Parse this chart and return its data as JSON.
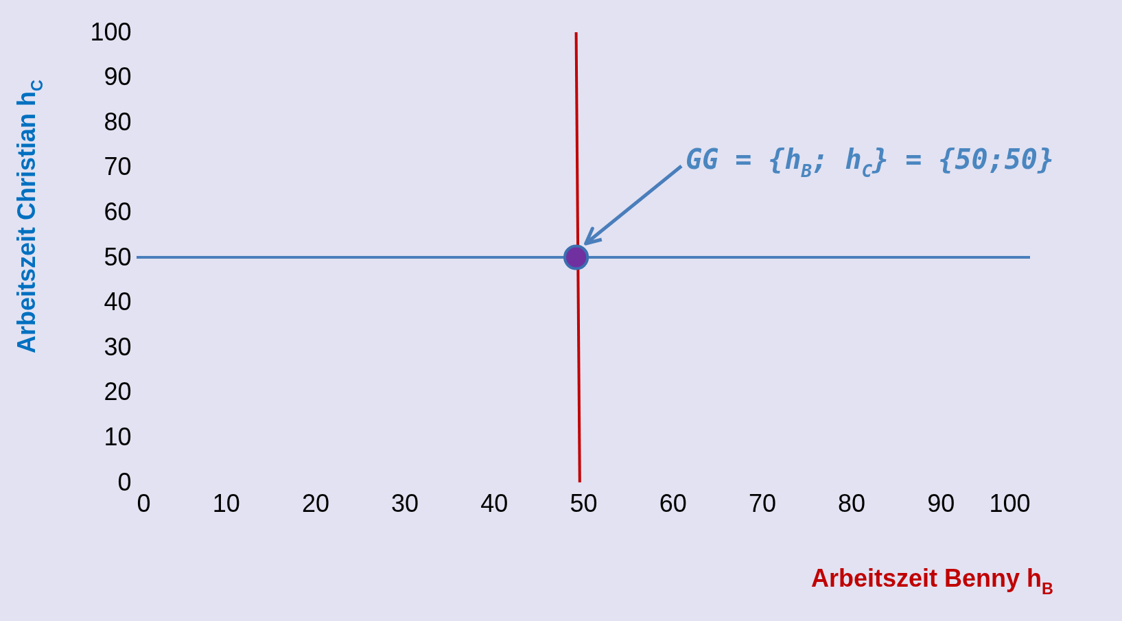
{
  "chart_data": {
    "type": "line",
    "xlabel": "Arbeitszeit Benny h$_{B}$",
    "ylabel": "Arbeitszeit Christian h$_{C}$",
    "xlim": [
      0,
      100
    ],
    "ylim": [
      0,
      100
    ],
    "xticks": [
      0,
      10,
      20,
      30,
      40,
      50,
      60,
      70,
      80,
      90,
      100
    ],
    "yticks": [
      0,
      10,
      20,
      30,
      40,
      50,
      60,
      70,
      80,
      90,
      100
    ],
    "grid": false,
    "series": [
      {
        "x": [
          0,
          100
        ],
        "values": [
          50,
          50
        ],
        "color": "#4a7ebb"
      },
      {
        "x": [
          49.2,
          49.6
        ],
        "values": [
          100,
          0
        ],
        "color": "#c00000"
      },
      {
        "type": "scatter",
        "x": [
          49.2
        ],
        "values": [
          50
        ],
        "color": "#7030a0"
      }
    ],
    "annotations": [
      "GG = {h$_{B}$; h$_{C}$} = {50;50}"
    ]
  }
}
